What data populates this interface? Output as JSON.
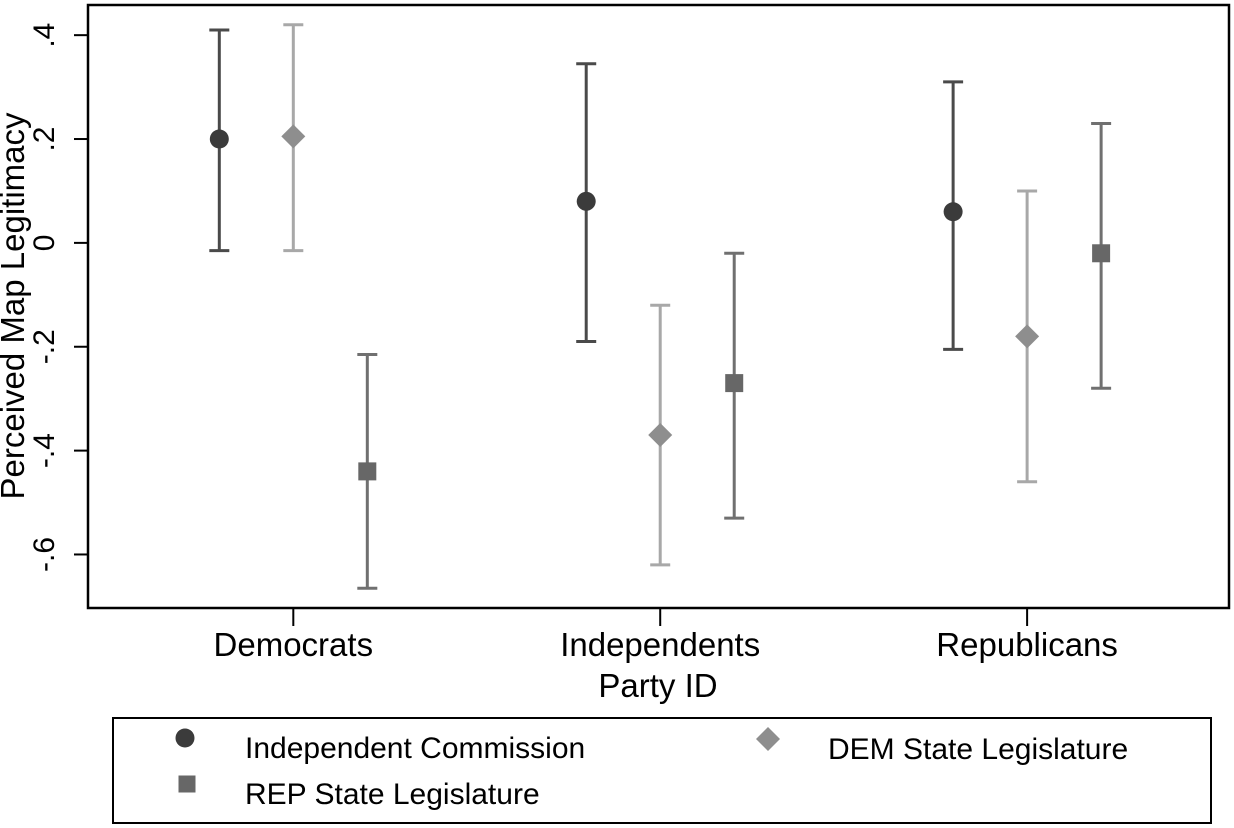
{
  "chart_data": {
    "type": "scatter",
    "subtype": "point-estimates-with-ci",
    "title": "",
    "xlabel": "Party ID",
    "ylabel": "Perceived Map Legitimacy",
    "categories": [
      "Democrats",
      "Independents",
      "Republicans"
    ],
    "y_ticks": [
      {
        "value": 0.4,
        "label": ".4"
      },
      {
        "value": 0.2,
        "label": ".2"
      },
      {
        "value": 0,
        "label": "0"
      },
      {
        "value": -0.2,
        "label": "-.2"
      },
      {
        "value": -0.4,
        "label": "-.4"
      },
      {
        "value": -0.6,
        "label": "-.6"
      }
    ],
    "ylim": [
      -0.705,
      0.46
    ],
    "grid": false,
    "legend_position": "bottom",
    "axis_color": "#000000",
    "text_color": "#000000",
    "series": [
      {
        "name": "Independent Commission",
        "marker": "circle",
        "marker_color": "#3b3b3b",
        "line_color": "#4a4a4a",
        "points": [
          {
            "category": "Democrats",
            "estimate": 0.2,
            "ci_low": -0.015,
            "ci_high": 0.41
          },
          {
            "category": "Independents",
            "estimate": 0.08,
            "ci_low": -0.19,
            "ci_high": 0.345
          },
          {
            "category": "Republicans",
            "estimate": 0.06,
            "ci_low": -0.205,
            "ci_high": 0.31
          }
        ]
      },
      {
        "name": "DEM State Legislature",
        "marker": "diamond",
        "marker_color": "#8e8e8e",
        "line_color": "#a8a8a8",
        "points": [
          {
            "category": "Democrats",
            "estimate": 0.205,
            "ci_low": -0.015,
            "ci_high": 0.42
          },
          {
            "category": "Independents",
            "estimate": -0.37,
            "ci_low": -0.62,
            "ci_high": -0.12
          },
          {
            "category": "Republicans",
            "estimate": -0.18,
            "ci_low": -0.46,
            "ci_high": 0.1
          }
        ]
      },
      {
        "name": "REP State Legislature",
        "marker": "square",
        "marker_color": "#676767",
        "line_color": "#707070",
        "points": [
          {
            "category": "Democrats",
            "estimate": -0.44,
            "ci_low": -0.665,
            "ci_high": -0.215
          },
          {
            "category": "Independents",
            "estimate": -0.27,
            "ci_low": -0.53,
            "ci_high": -0.02
          },
          {
            "category": "Republicans",
            "estimate": -0.02,
            "ci_low": -0.28,
            "ci_high": 0.23
          }
        ]
      }
    ]
  }
}
